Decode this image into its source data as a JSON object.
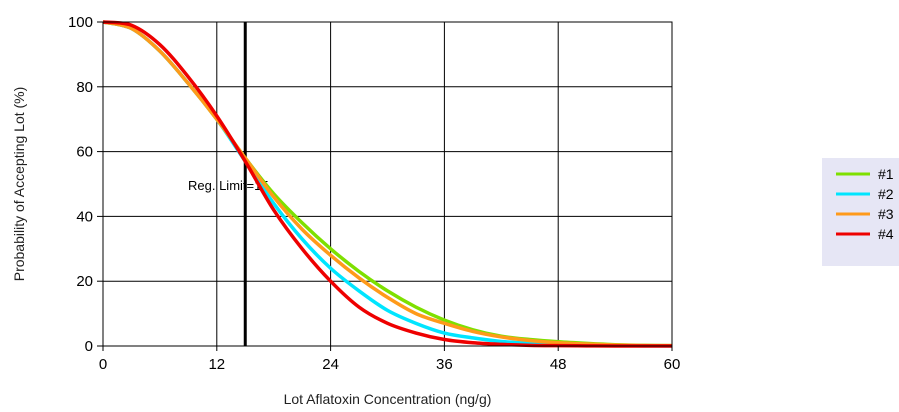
{
  "chart_data": {
    "type": "line",
    "title": "",
    "xlabel": "Lot Aflatoxin Concentration (ng/g)",
    "ylabel": "Probability of Accepting Lot (%)",
    "xlim": [
      0,
      60
    ],
    "ylim": [
      0,
      100
    ],
    "xticks": [
      0,
      12,
      24,
      36,
      48,
      60
    ],
    "yticks": [
      0,
      20,
      40,
      60,
      80,
      100
    ],
    "grid": true,
    "legend_position": "right",
    "reference_line": {
      "x": 15,
      "label": "Reg. Limit=15",
      "color": "#000000"
    },
    "x": [
      0,
      3,
      6,
      9,
      12,
      15,
      18,
      21,
      24,
      27,
      30,
      33,
      36,
      39,
      42,
      45,
      48,
      51,
      54,
      57,
      60
    ],
    "series": [
      {
        "name": "#1",
        "color": "#7ee000",
        "values": [
          100,
          98,
          91,
          81,
          70,
          58,
          47,
          38,
          30,
          23,
          17,
          12,
          8,
          5,
          3,
          2,
          1.3,
          0.8,
          0.4,
          0.2,
          0.1
        ]
      },
      {
        "name": "#2",
        "color": "#00e5ff",
        "values": [
          100,
          98,
          91,
          81,
          70,
          57,
          44,
          33,
          24,
          17,
          11,
          7,
          4,
          2.5,
          1.4,
          0.8,
          0.4,
          0.2,
          0.1,
          0.05,
          0
        ]
      },
      {
        "name": "#3",
        "color": "#ff9a1a",
        "values": [
          100,
          98,
          91,
          81,
          70,
          58,
          46,
          36,
          28,
          21,
          15,
          10,
          7,
          4.5,
          2.8,
          1.7,
          1,
          0.6,
          0.3,
          0.15,
          0.1
        ]
      },
      {
        "name": "#4",
        "color": "#ee0000",
        "values": [
          100,
          99,
          93,
          83,
          71,
          57,
          42,
          30,
          20,
          12,
          7,
          4,
          2,
          1,
          0.5,
          0.2,
          0.1,
          0.05,
          0,
          0,
          0
        ]
      }
    ]
  }
}
